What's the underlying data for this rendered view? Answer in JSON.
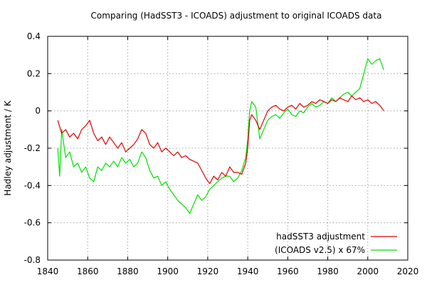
{
  "chart_data": {
    "type": "line",
    "title": "Comparing (HadSST3 - ICOADS) adjustment to original ICOADS data",
    "xlabel": "",
    "ylabel": "Hadley adjustment / K",
    "xlim": [
      1840,
      2020
    ],
    "ylim": [
      -0.8,
      0.4
    ],
    "x_ticks": [
      1840,
      1860,
      1880,
      1900,
      1920,
      1940,
      1960,
      1980,
      2000,
      2020
    ],
    "y_ticks": [
      -0.8,
      -0.6,
      -0.4,
      -0.2,
      0,
      0.2,
      0.4
    ],
    "x_tick_labels": [
      "1840",
      "1860",
      "1880",
      "1900",
      "1920",
      "1940",
      "1960",
      "1980",
      "2000",
      "2020"
    ],
    "y_tick_labels": [
      "-0.8",
      "-0.6",
      "-0.4",
      "-0.2",
      "0",
      "0.2",
      "0.4"
    ],
    "grid": true,
    "legend_position": "bottom-right",
    "series": [
      {
        "name": "hadSST3 adjustment",
        "color": "#e00000",
        "points": [
          [
            1845,
            -0.05
          ],
          [
            1847,
            -0.12
          ],
          [
            1849,
            -0.1
          ],
          [
            1851,
            -0.14
          ],
          [
            1853,
            -0.12
          ],
          [
            1855,
            -0.15
          ],
          [
            1857,
            -0.1
          ],
          [
            1859,
            -0.08
          ],
          [
            1861,
            -0.05
          ],
          [
            1863,
            -0.12
          ],
          [
            1865,
            -0.16
          ],
          [
            1867,
            -0.14
          ],
          [
            1869,
            -0.18
          ],
          [
            1871,
            -0.14
          ],
          [
            1873,
            -0.17
          ],
          [
            1875,
            -0.2
          ],
          [
            1877,
            -0.17
          ],
          [
            1879,
            -0.22
          ],
          [
            1881,
            -0.2
          ],
          [
            1883,
            -0.18
          ],
          [
            1885,
            -0.15
          ],
          [
            1887,
            -0.1
          ],
          [
            1889,
            -0.12
          ],
          [
            1891,
            -0.18
          ],
          [
            1893,
            -0.2
          ],
          [
            1895,
            -0.17
          ],
          [
            1897,
            -0.22
          ],
          [
            1899,
            -0.2
          ],
          [
            1901,
            -0.22
          ],
          [
            1903,
            -0.24
          ],
          [
            1905,
            -0.22
          ],
          [
            1907,
            -0.25
          ],
          [
            1909,
            -0.24
          ],
          [
            1911,
            -0.26
          ],
          [
            1913,
            -0.27
          ],
          [
            1915,
            -0.28
          ],
          [
            1917,
            -0.32
          ],
          [
            1919,
            -0.36
          ],
          [
            1921,
            -0.39
          ],
          [
            1923,
            -0.35
          ],
          [
            1925,
            -0.37
          ],
          [
            1927,
            -0.33
          ],
          [
            1929,
            -0.35
          ],
          [
            1931,
            -0.3
          ],
          [
            1933,
            -0.33
          ],
          [
            1935,
            -0.33
          ],
          [
            1937,
            -0.34
          ],
          [
            1939,
            -0.28
          ],
          [
            1940,
            -0.2
          ],
          [
            1941,
            -0.05
          ],
          [
            1942,
            -0.02
          ],
          [
            1944,
            -0.05
          ],
          [
            1946,
            -0.1
          ],
          [
            1948,
            -0.05
          ],
          [
            1950,
            0.0
          ],
          [
            1952,
            0.02
          ],
          [
            1954,
            0.03
          ],
          [
            1956,
            0.01
          ],
          [
            1958,
            0.0
          ],
          [
            1960,
            0.02
          ],
          [
            1962,
            0.03
          ],
          [
            1964,
            0.01
          ],
          [
            1966,
            0.04
          ],
          [
            1968,
            0.02
          ],
          [
            1970,
            0.03
          ],
          [
            1972,
            0.05
          ],
          [
            1974,
            0.04
          ],
          [
            1976,
            0.06
          ],
          [
            1978,
            0.05
          ],
          [
            1980,
            0.04
          ],
          [
            1982,
            0.06
          ],
          [
            1984,
            0.05
          ],
          [
            1986,
            0.07
          ],
          [
            1988,
            0.06
          ],
          [
            1990,
            0.05
          ],
          [
            1992,
            0.08
          ],
          [
            1994,
            0.06
          ],
          [
            1996,
            0.07
          ],
          [
            1998,
            0.05
          ],
          [
            2000,
            0.06
          ],
          [
            2002,
            0.04
          ],
          [
            2004,
            0.05
          ],
          [
            2006,
            0.03
          ],
          [
            2008,
            0.0
          ]
        ]
      },
      {
        "name": "(ICOADS v2.5) x 67%",
        "color": "#00e000",
        "points": [
          [
            1845,
            -0.2
          ],
          [
            1846,
            -0.35
          ],
          [
            1847,
            -0.1
          ],
          [
            1849,
            -0.25
          ],
          [
            1851,
            -0.22
          ],
          [
            1853,
            -0.3
          ],
          [
            1855,
            -0.28
          ],
          [
            1857,
            -0.33
          ],
          [
            1859,
            -0.3
          ],
          [
            1861,
            -0.36
          ],
          [
            1863,
            -0.38
          ],
          [
            1865,
            -0.3
          ],
          [
            1867,
            -0.32
          ],
          [
            1869,
            -0.28
          ],
          [
            1871,
            -0.3
          ],
          [
            1873,
            -0.27
          ],
          [
            1875,
            -0.3
          ],
          [
            1877,
            -0.25
          ],
          [
            1879,
            -0.28
          ],
          [
            1881,
            -0.26
          ],
          [
            1883,
            -0.3
          ],
          [
            1885,
            -0.28
          ],
          [
            1887,
            -0.22
          ],
          [
            1889,
            -0.25
          ],
          [
            1891,
            -0.32
          ],
          [
            1893,
            -0.36
          ],
          [
            1895,
            -0.35
          ],
          [
            1897,
            -0.4
          ],
          [
            1899,
            -0.38
          ],
          [
            1901,
            -0.42
          ],
          [
            1903,
            -0.45
          ],
          [
            1905,
            -0.48
          ],
          [
            1907,
            -0.5
          ],
          [
            1909,
            -0.52
          ],
          [
            1911,
            -0.55
          ],
          [
            1913,
            -0.5
          ],
          [
            1915,
            -0.45
          ],
          [
            1917,
            -0.48
          ],
          [
            1919,
            -0.46
          ],
          [
            1921,
            -0.42
          ],
          [
            1923,
            -0.4
          ],
          [
            1925,
            -0.38
          ],
          [
            1927,
            -0.36
          ],
          [
            1929,
            -0.35
          ],
          [
            1931,
            -0.35
          ],
          [
            1933,
            -0.38
          ],
          [
            1935,
            -0.36
          ],
          [
            1937,
            -0.32
          ],
          [
            1939,
            -0.25
          ],
          [
            1940,
            -0.15
          ],
          [
            1941,
            0.0
          ],
          [
            1942,
            0.05
          ],
          [
            1944,
            0.02
          ],
          [
            1946,
            -0.15
          ],
          [
            1948,
            -0.1
          ],
          [
            1950,
            -0.05
          ],
          [
            1952,
            -0.03
          ],
          [
            1954,
            -0.02
          ],
          [
            1956,
            -0.04
          ],
          [
            1958,
            -0.01
          ],
          [
            1960,
            0.01
          ],
          [
            1962,
            -0.02
          ],
          [
            1964,
            -0.03
          ],
          [
            1966,
            0.0
          ],
          [
            1968,
            -0.01
          ],
          [
            1970,
            0.02
          ],
          [
            1972,
            0.04
          ],
          [
            1974,
            0.02
          ],
          [
            1976,
            0.03
          ],
          [
            1978,
            0.05
          ],
          [
            1980,
            0.04
          ],
          [
            1982,
            0.07
          ],
          [
            1984,
            0.05
          ],
          [
            1986,
            0.07
          ],
          [
            1988,
            0.09
          ],
          [
            1990,
            0.1
          ],
          [
            1992,
            0.08
          ],
          [
            1994,
            0.1
          ],
          [
            1996,
            0.12
          ],
          [
            1998,
            0.2
          ],
          [
            2000,
            0.28
          ],
          [
            2002,
            0.25
          ],
          [
            2004,
            0.27
          ],
          [
            2006,
            0.28
          ],
          [
            2008,
            0.22
          ]
        ]
      }
    ]
  }
}
